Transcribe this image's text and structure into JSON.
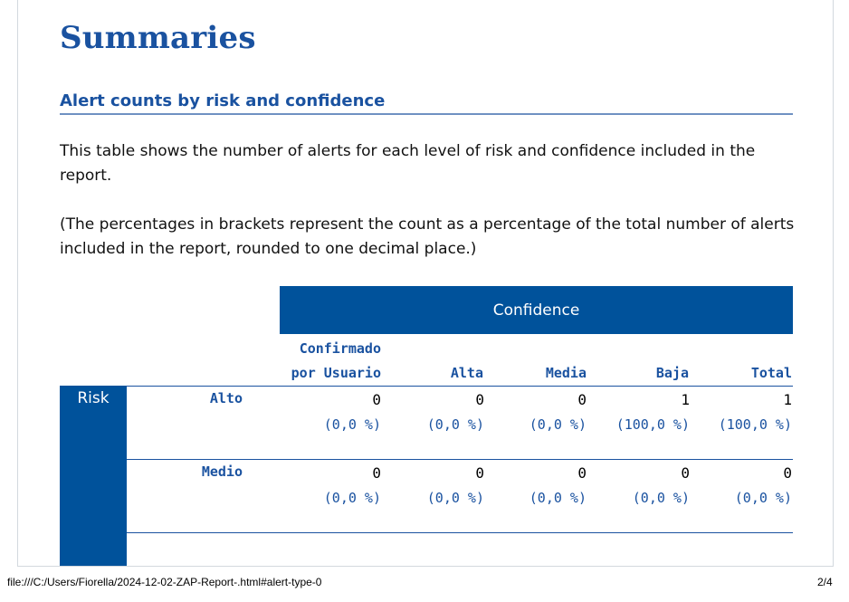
{
  "page": {
    "title": "Summaries",
    "section_title": "Alert counts by risk and confidence",
    "paragraph1": "This table shows the number of alerts for each level of risk and confidence included in the report.",
    "paragraph2": "(The percentages in brackets represent the count as a percentage of the total number of alerts included in the report, rounded to one decimal place.)"
  },
  "table": {
    "confidence_label": "Confidence",
    "risk_label": "Risk",
    "columns": [
      "Confirmado\npor Usuario",
      "Alta",
      "Media",
      "Baja",
      "Total"
    ],
    "col_line1": "Confirmado",
    "col_line2": "por Usuario",
    "rows": [
      {
        "label": "Alto",
        "counts": [
          "0",
          "0",
          "0",
          "1",
          "1"
        ],
        "pcts": [
          "(0,0 %)",
          "(0,0 %)",
          "(0,0 %)",
          "(100,0 %)",
          "(100,0 %)"
        ]
      },
      {
        "label": "Medio",
        "counts": [
          "0",
          "0",
          "0",
          "0",
          "0"
        ],
        "pcts": [
          "(0,0 %)",
          "(0,0 %)",
          "(0,0 %)",
          "(0,0 %)",
          "(0,0 %)"
        ]
      }
    ]
  },
  "footer": {
    "url": "file:///C:/Users/Fiorella/2024-12-02-ZAP-Report-.html#alert-type-0",
    "page_number": "2/4"
  },
  "colors": {
    "accent": "#1a52a0",
    "header_bg": "#00529b"
  }
}
